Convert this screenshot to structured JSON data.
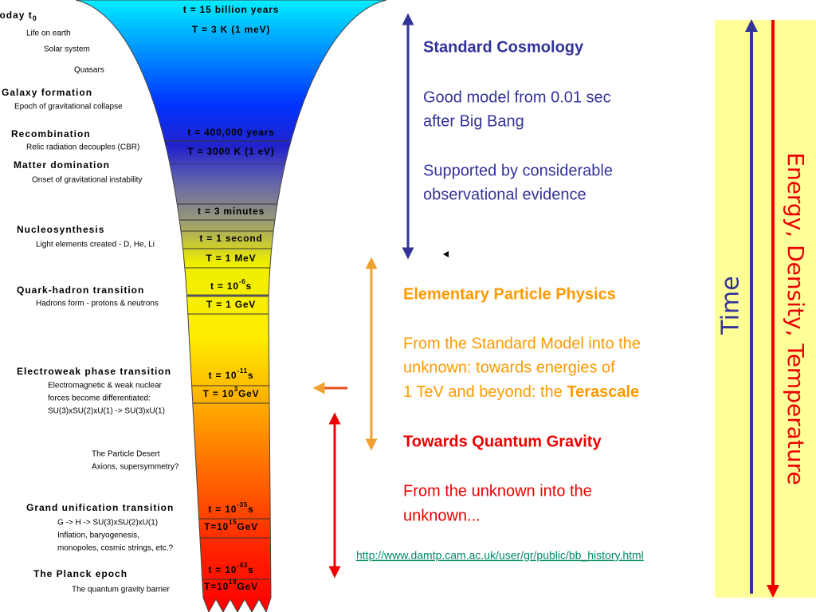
{
  "left_labels": {
    "today": {
      "text": "Today t",
      "sub": "0"
    },
    "items": [
      "Life on earth",
      "Solar system",
      "Quasars",
      "Galaxy formation",
      "Epoch of gravitational collapse",
      "Recombination",
      "Relic radiation decouples (CBR)",
      "Matter domination",
      "Onset of gravitational instability",
      "Nucleosynthesis",
      "Light elements created - D, He, Li",
      "Quark-hadron transition",
      "Hadrons form - protons & neutrons",
      "Electroweak phase transition",
      "Electromagnetic & weak nuclear",
      "forces become differentiated:",
      "SU(3)xSU(2)xU(1) -> SU(3)xU(1)",
      "The Particle Desert",
      "Axions, supersymmetry?",
      "Grand unification transition",
      "G -> H -> SU(3)xSU(2)xU(1)",
      "Inflation, baryogenesis,",
      "monopoles, cosmic strings, etc.?",
      "The Planck epoch",
      "The quantum gravity barrier"
    ]
  },
  "funnel": {
    "labels": [
      {
        "text": "t = 15 billion years"
      },
      {
        "text": "T = 3 K   (1 meV)"
      },
      {
        "text": "t = 400,000 years"
      },
      {
        "text": "T = 3000 K   (1 eV)"
      },
      {
        "text": "t = 3 minutes"
      },
      {
        "text": "t = 1 second"
      },
      {
        "text": "T = 1 MeV"
      },
      {
        "text": "t = 10",
        "sup": "-6",
        "unit": "s"
      },
      {
        "text": "T = 1 GeV"
      },
      {
        "text": "t = 10",
        "sup": "-11",
        "unit": "s"
      },
      {
        "text": "T = 10",
        "sup": "3",
        "unit": "GeV"
      },
      {
        "text": "t = 10",
        "sup": "-35",
        "unit": "s"
      },
      {
        "text": "T=10",
        "sup": "15",
        "unit": "GeV"
      },
      {
        "text": "t = 10",
        "sup": "-43",
        "unit": "s"
      },
      {
        "text": "T=10",
        "sup": "19",
        "unit": "GeV"
      }
    ]
  },
  "right": {
    "cosmology": {
      "title": "Standard Cosmology",
      "lines": [
        "Good model from 0.01 sec",
        "after Big Bang",
        "Supported by considerable",
        "observational evidence"
      ]
    },
    "particle": {
      "title": "Elementary Particle Physics",
      "lines": [
        "From the Standard Model into the",
        "unknown: towards energies of",
        "1 TeV and beyond: the "
      ],
      "emphasis": "Terascale"
    },
    "gravity": {
      "title": "Towards Quantum Gravity",
      "lines": [
        "From the unknown into the",
        "unknown..."
      ]
    },
    "link": "http://www.damtp.cam.ac.uk/user/gr/public/bb_history.html"
  },
  "axis_panel": {
    "time": "Time",
    "energy": "Energy, Density, Temperature"
  }
}
